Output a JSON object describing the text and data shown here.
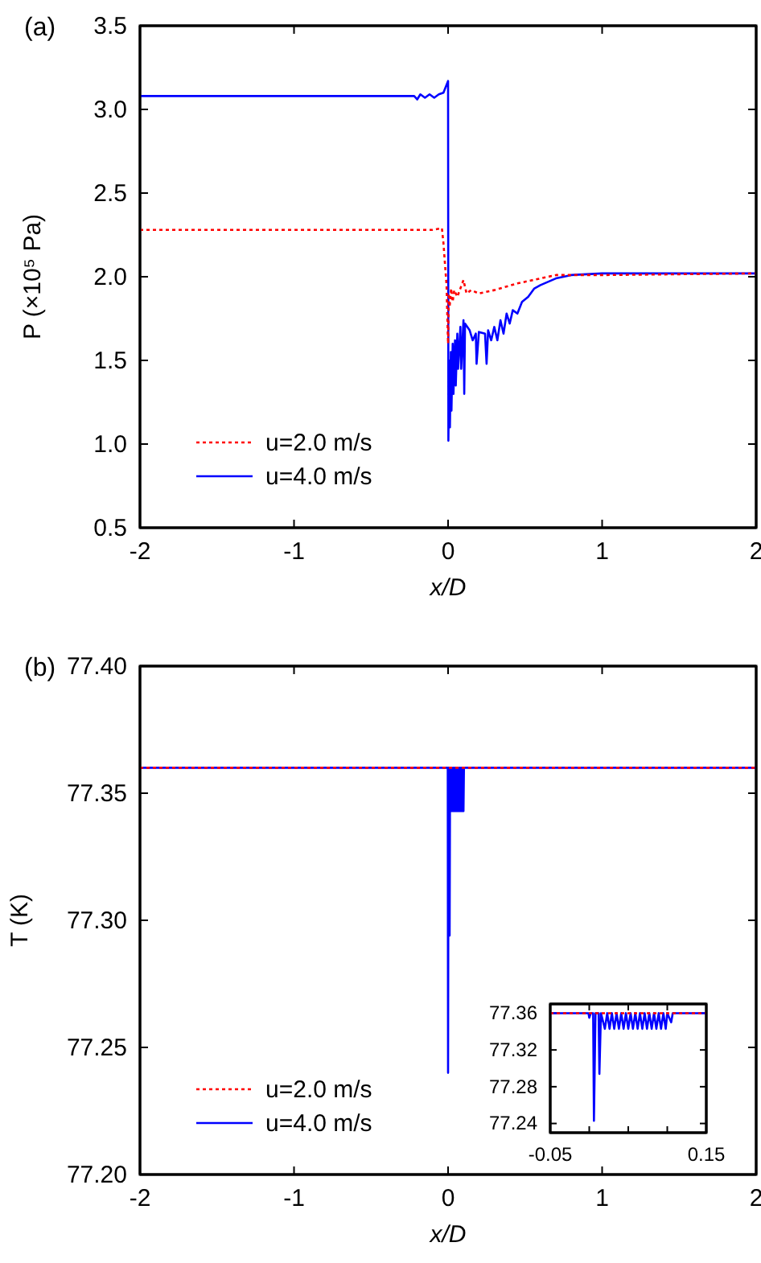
{
  "chart_data": [
    {
      "type": "line",
      "title": "(a)",
      "xlabel": "x/D",
      "ylabel": "P (×10⁵ Pa)",
      "xlim": [
        -2,
        2
      ],
      "xticks": [
        -2,
        -1,
        0,
        1,
        2
      ],
      "ylim": [
        0.5,
        3.5
      ],
      "yticks": [
        {
          "value": 0.5,
          "label": "0.5"
        },
        {
          "value": 1,
          "label": "1.0"
        },
        {
          "value": 1.5,
          "label": "1.5"
        },
        {
          "value": 2,
          "label": "2.0"
        },
        {
          "value": 2.5,
          "label": "2.5"
        },
        {
          "value": 3,
          "label": "3.0"
        },
        {
          "value": 3.5,
          "label": "3.5"
        }
      ],
      "legend": "bottom left",
      "grid": false,
      "marker": "none",
      "series": [
        {
          "name": "u=2.0 m/s",
          "color": "#ff0000",
          "line_style": "dotted",
          "x": [
            -2,
            -0.1,
            -0.04,
            -0.03,
            -0.01,
            0,
            0.005,
            0.01,
            0.02,
            0.03,
            0.04,
            0.06,
            0.08,
            0.1,
            0.12,
            0.15,
            0.2,
            0.3,
            0.45,
            0.6,
            0.7,
            1,
            2
          ],
          "values": [
            2.28,
            2.28,
            2.29,
            2.2,
            1.95,
            1.6,
            1.9,
            1.82,
            1.93,
            1.85,
            1.92,
            1.88,
            1.93,
            1.98,
            1.9,
            1.92,
            1.9,
            1.92,
            1.96,
            1.99,
            2.01,
            2.01,
            2.02
          ]
        },
        {
          "name": "u=4.0 m/s",
          "color": "#0000ff",
          "line_style": "solid",
          "x": [
            -2,
            -0.22,
            -0.2,
            -0.18,
            -0.15,
            -0.12,
            -0.09,
            -0.06,
            -0.03,
            0,
            0.002,
            0.008,
            0.012,
            0.018,
            0.022,
            0.03,
            0.035,
            0.045,
            0.05,
            0.06,
            0.065,
            0.08,
            0.085,
            0.1,
            0.105,
            0.11,
            0.14,
            0.16,
            0.18,
            0.185,
            0.2,
            0.24,
            0.25,
            0.26,
            0.28,
            0.3,
            0.32,
            0.34,
            0.36,
            0.38,
            0.4,
            0.42,
            0.45,
            0.48,
            0.52,
            0.56,
            0.6,
            0.7,
            0.8,
            1,
            2
          ],
          "values": [
            3.08,
            3.08,
            3.06,
            3.09,
            3.07,
            3.09,
            3.07,
            3.09,
            3.1,
            3.17,
            1.02,
            1.5,
            1.1,
            1.55,
            1.2,
            1.6,
            1.3,
            1.62,
            1.35,
            1.66,
            1.45,
            1.7,
            1.45,
            1.74,
            1.3,
            1.72,
            1.68,
            1.62,
            1.66,
            1.48,
            1.67,
            1.66,
            1.48,
            1.68,
            1.62,
            1.7,
            1.62,
            1.74,
            1.66,
            1.78,
            1.72,
            1.8,
            1.78,
            1.85,
            1.88,
            1.93,
            1.95,
            1.99,
            2.01,
            2.02,
            2.02
          ]
        }
      ]
    },
    {
      "type": "line",
      "title": "(b)",
      "xlabel": "x/D",
      "ylabel": "T (K)",
      "xlim": [
        -2,
        2
      ],
      "xticks": [
        -2,
        -1,
        0,
        1,
        2
      ],
      "ylim": [
        77.2,
        77.4
      ],
      "yticks": [
        {
          "value": 77.2,
          "label": "77.20"
        },
        {
          "value": 77.25,
          "label": "77.25"
        },
        {
          "value": 77.3,
          "label": "77.30"
        },
        {
          "value": 77.35,
          "label": "77.35"
        },
        {
          "value": 77.4,
          "label": "77.40"
        }
      ],
      "legend": "bottom left",
      "grid": false,
      "marker": "none",
      "series": [
        {
          "name": "u=2.0 m/s",
          "color": "#ff0000",
          "line_style": "dotted",
          "x": [
            -2,
            2
          ],
          "values": [
            77.36,
            77.36
          ]
        },
        {
          "name": "u=4.0 m/s",
          "color": "#0000ff",
          "line_style": "solid",
          "x": [
            -2,
            -0.002,
            0,
            0.003,
            0.008,
            0.01,
            0.013,
            0.02,
            0.025,
            0.03,
            0.035,
            0.04,
            0.045,
            0.05,
            0.055,
            0.06,
            0.065,
            0.07,
            0.075,
            0.08,
            0.085,
            0.09,
            0.095,
            0.1,
            0.103,
            2
          ],
          "values": [
            77.36,
            77.36,
            77.24,
            77.36,
            77.36,
            77.294,
            77.36,
            77.343,
            77.36,
            77.343,
            77.36,
            77.343,
            77.36,
            77.343,
            77.36,
            77.343,
            77.36,
            77.343,
            77.36,
            77.343,
            77.36,
            77.343,
            77.36,
            77.343,
            77.36,
            77.36
          ]
        }
      ]
    },
    {
      "type": "line",
      "xlim": [
        -0.05,
        0.15
      ],
      "xticks": [
        -0.05,
        {
          "value": 0,
          "label": null
        },
        {
          "value": 0.05,
          "label": null
        },
        {
          "value": 0.1,
          "label": null
        },
        0.15
      ],
      "ylim": [
        77.23,
        77.37
      ],
      "yticks": [
        77.24,
        77.28,
        77.32,
        77.36
      ],
      "legend": false,
      "grid": false,
      "marker": "none",
      "series": [
        {
          "color": "#ff0000",
          "line_style": "dotted",
          "x": [
            -0.05,
            0.15
          ],
          "values": [
            77.36,
            77.36
          ]
        },
        {
          "color": "#0000ff",
          "line_style": "solid",
          "x": [
            -0.05,
            -0.001,
            0,
            0.002,
            0.005,
            0.006,
            0.008,
            0.012,
            0.013,
            0.015,
            0.02,
            0.023,
            0.026,
            0.029,
            0.032,
            0.035,
            0.038,
            0.041,
            0.044,
            0.047,
            0.05,
            0.053,
            0.056,
            0.059,
            0.062,
            0.065,
            0.068,
            0.071,
            0.074,
            0.077,
            0.08,
            0.083,
            0.086,
            0.089,
            0.092,
            0.095,
            0.098,
            0.1,
            0.105,
            0.107,
            0.15
          ],
          "values": [
            77.36,
            77.36,
            77.355,
            77.36,
            77.36,
            77.243,
            77.36,
            77.36,
            77.294,
            77.36,
            77.343,
            77.36,
            77.343,
            77.36,
            77.343,
            77.36,
            77.343,
            77.36,
            77.343,
            77.36,
            77.343,
            77.36,
            77.343,
            77.36,
            77.343,
            77.36,
            77.343,
            77.36,
            77.343,
            77.36,
            77.343,
            77.36,
            77.343,
            77.36,
            77.343,
            77.36,
            77.343,
            77.36,
            77.35,
            77.36,
            77.36
          ]
        }
      ]
    }
  ]
}
